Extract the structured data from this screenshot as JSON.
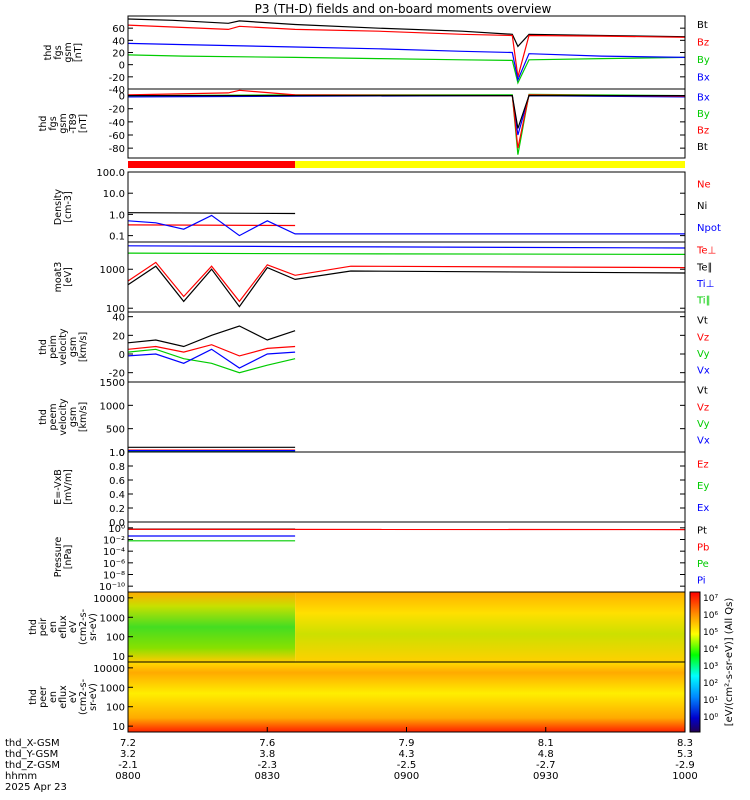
{
  "title": "P3 (TH-D) fields and on-board moments overview",
  "chart_data": [
    {
      "type": "line",
      "ylabel": [
        "thd",
        "fgs",
        "gsm",
        "[nT]"
      ],
      "ticks": [
        "-40",
        "-20",
        "0",
        "20",
        "40",
        "60"
      ],
      "ylim": [
        -40,
        80
      ],
      "series": [
        {
          "name": "Bt",
          "color": "#000000",
          "points": [
            [
              0,
              75
            ],
            [
              0.08,
              73
            ],
            [
              0.18,
              68
            ],
            [
              0.2,
              72
            ],
            [
              0.3,
              66
            ],
            [
              0.45,
              60
            ],
            [
              0.6,
              55
            ],
            [
              0.69,
              50
            ],
            [
              0.7,
              30
            ],
            [
              0.72,
              50
            ],
            [
              0.85,
              48
            ],
            [
              1,
              46
            ]
          ]
        },
        {
          "name": "Bz",
          "color": "#ff0000",
          "points": [
            [
              0,
              65
            ],
            [
              0.08,
              62
            ],
            [
              0.18,
              58
            ],
            [
              0.2,
              63
            ],
            [
              0.3,
              58
            ],
            [
              0.45,
              55
            ],
            [
              0.6,
              50
            ],
            [
              0.69,
              48
            ],
            [
              0.7,
              -20
            ],
            [
              0.72,
              48
            ],
            [
              0.85,
              47
            ],
            [
              1,
              45
            ]
          ]
        },
        {
          "name": "By",
          "color": "#00cc00",
          "points": [
            [
              0,
              16
            ],
            [
              0.1,
              14
            ],
            [
              0.3,
              12
            ],
            [
              0.45,
              10
            ],
            [
              0.6,
              8
            ],
            [
              0.69,
              7
            ],
            [
              0.7,
              -30
            ],
            [
              0.72,
              8
            ],
            [
              0.85,
              10
            ],
            [
              1,
              12
            ]
          ]
        },
        {
          "name": "Bx",
          "color": "#0000ff",
          "points": [
            [
              0,
              35
            ],
            [
              0.1,
              33
            ],
            [
              0.3,
              29
            ],
            [
              0.45,
              26
            ],
            [
              0.6,
              22
            ],
            [
              0.69,
              20
            ],
            [
              0.7,
              -25
            ],
            [
              0.72,
              18
            ],
            [
              0.85,
              14
            ],
            [
              1,
              12
            ]
          ]
        }
      ]
    },
    {
      "type": "line",
      "ylabel": [
        "thd",
        "fgs",
        "gsm",
        "-T89",
        "[nT]"
      ],
      "ticks": [
        "-80",
        "-60",
        "-40",
        "-20",
        "0"
      ],
      "ylim": [
        -95,
        10
      ],
      "series": [
        {
          "name": "Bx",
          "color": "#0000ff",
          "points": [
            [
              0,
              -2
            ],
            [
              0.3,
              -1
            ],
            [
              0.69,
              0
            ],
            [
              0.7,
              -60
            ],
            [
              0.72,
              0
            ],
            [
              1,
              -2
            ]
          ]
        },
        {
          "name": "By",
          "color": "#00cc00",
          "points": [
            [
              0,
              0
            ],
            [
              0.3,
              1
            ],
            [
              0.69,
              1
            ],
            [
              0.7,
              -90
            ],
            [
              0.72,
              2
            ],
            [
              1,
              0
            ]
          ]
        },
        {
          "name": "Bz",
          "color": "#ff0000",
          "points": [
            [
              0,
              1
            ],
            [
              0.18,
              4
            ],
            [
              0.2,
              8
            ],
            [
              0.3,
              1
            ],
            [
              0.69,
              0
            ],
            [
              0.7,
              -80
            ],
            [
              0.72,
              1
            ],
            [
              1,
              -1
            ]
          ]
        },
        {
          "name": "Bt",
          "color": "#000000",
          "points": [
            [
              0,
              0
            ],
            [
              0.3,
              0
            ],
            [
              0.69,
              0
            ],
            [
              0.7,
              -50
            ],
            [
              0.72,
              0
            ],
            [
              1,
              0
            ]
          ]
        }
      ]
    },
    {
      "type": "line",
      "ylabel": [
        "Density",
        "[cm-3]"
      ],
      "ticks": [
        "0.1",
        "1.0",
        "10.0",
        "100.0"
      ],
      "scale": "log",
      "ylim": [
        0.05,
        100
      ],
      "series": [
        {
          "name": "Ne",
          "color": "#ff0000",
          "points": [
            [
              0,
              0.32
            ],
            [
              0.3,
              0.3
            ]
          ]
        },
        {
          "name": "Ni",
          "color": "#000000",
          "points": [
            [
              0,
              1.2
            ],
            [
              0.3,
              1.1
            ]
          ]
        },
        {
          "name": "Npot",
          "color": "#0000ff",
          "points": [
            [
              0,
              0.5
            ],
            [
              0.05,
              0.4
            ],
            [
              0.1,
              0.2
            ],
            [
              0.15,
              0.9
            ],
            [
              0.2,
              0.1
            ],
            [
              0.25,
              0.5
            ],
            [
              0.3,
              0.12
            ],
            [
              1,
              0.12
            ]
          ]
        }
      ]
    },
    {
      "type": "line",
      "ylabel": [
        "moat3",
        "[eV]"
      ],
      "ticks": [
        "100",
        "1000"
      ],
      "scale": "log",
      "ylim": [
        80,
        5000
      ],
      "series": [
        {
          "name": "Te⊥",
          "color": "#ff0000",
          "points": [
            [
              0,
              500
            ],
            [
              0.05,
              1500
            ],
            [
              0.1,
              200
            ],
            [
              0.15,
              1200
            ],
            [
              0.2,
              150
            ],
            [
              0.25,
              1300
            ],
            [
              0.3,
              700
            ],
            [
              0.4,
              1200
            ],
            [
              1,
              1100
            ]
          ]
        },
        {
          "name": "Te∥",
          "color": "#000000",
          "points": [
            [
              0,
              400
            ],
            [
              0.05,
              1200
            ],
            [
              0.1,
              150
            ],
            [
              0.15,
              1000
            ],
            [
              0.2,
              110
            ],
            [
              0.25,
              1100
            ],
            [
              0.3,
              550
            ],
            [
              0.4,
              900
            ],
            [
              1,
              800
            ]
          ]
        },
        {
          "name": "Ti⊥",
          "color": "#0000ff",
          "points": [
            [
              0,
              4000
            ],
            [
              0.3,
              3800
            ],
            [
              1,
              3500
            ]
          ]
        },
        {
          "name": "Ti∥",
          "color": "#00cc00",
          "points": [
            [
              0,
              2600
            ],
            [
              0.3,
              2500
            ],
            [
              1,
              2400
            ]
          ]
        }
      ]
    },
    {
      "type": "line",
      "ylabel": [
        "thd",
        "peim",
        "velocity",
        "gsm",
        "[km/s]"
      ],
      "ticks": [
        "-20",
        "0",
        "20",
        "40"
      ],
      "ylim": [
        -30,
        45
      ],
      "series": [
        {
          "name": "Vt",
          "color": "#000000",
          "points": [
            [
              0,
              12
            ],
            [
              0.05,
              15
            ],
            [
              0.1,
              8
            ],
            [
              0.15,
              20
            ],
            [
              0.2,
              30
            ],
            [
              0.25,
              15
            ],
            [
              0.3,
              25
            ]
          ]
        },
        {
          "name": "Vz",
          "color": "#ff0000",
          "points": [
            [
              0,
              5
            ],
            [
              0.05,
              8
            ],
            [
              0.1,
              2
            ],
            [
              0.15,
              10
            ],
            [
              0.2,
              -2
            ],
            [
              0.25,
              6
            ],
            [
              0.3,
              8
            ]
          ]
        },
        {
          "name": "Vy",
          "color": "#00cc00",
          "points": [
            [
              0,
              2
            ],
            [
              0.05,
              5
            ],
            [
              0.1,
              -5
            ],
            [
              0.15,
              -10
            ],
            [
              0.2,
              -20
            ],
            [
              0.25,
              -12
            ],
            [
              0.3,
              -5
            ]
          ]
        },
        {
          "name": "Vx",
          "color": "#0000ff",
          "points": [
            [
              0,
              -2
            ],
            [
              0.05,
              0
            ],
            [
              0.1,
              -10
            ],
            [
              0.15,
              5
            ],
            [
              0.2,
              -15
            ],
            [
              0.25,
              0
            ],
            [
              0.3,
              2
            ]
          ]
        }
      ]
    },
    {
      "type": "line",
      "ylabel": [
        "thd",
        "peem",
        "velocity",
        "gsm",
        "[km/s]"
      ],
      "ticks": [
        "0",
        "500",
        "1000",
        "1500"
      ],
      "ylim": [
        0,
        1500
      ],
      "series": [
        {
          "name": "Vt",
          "color": "#000000",
          "points": [
            [
              0,
              100
            ],
            [
              0.3,
              100
            ]
          ]
        },
        {
          "name": "Vz",
          "color": "#ff0000",
          "points": [
            [
              0,
              40
            ],
            [
              0.3,
              40
            ]
          ]
        },
        {
          "name": "Vy",
          "color": "#00cc00",
          "points": [
            [
              0,
              20
            ],
            [
              0.3,
              20
            ]
          ]
        },
        {
          "name": "Vx",
          "color": "#0000ff",
          "points": [
            [
              0,
              30
            ],
            [
              0.3,
              30
            ]
          ]
        }
      ]
    },
    {
      "type": "line",
      "ylabel": [
        "E=-VxB",
        "[mV/m]"
      ],
      "ticks": [
        "0.0",
        "0.2",
        "0.4",
        "0.6",
        "0.8",
        "1.0"
      ],
      "ylim": [
        0,
        1
      ],
      "series": [
        {
          "name": "Ez",
          "color": "#ff0000",
          "points": []
        },
        {
          "name": "Ey",
          "color": "#00cc00",
          "points": []
        },
        {
          "name": "Ex",
          "color": "#0000ff",
          "points": []
        }
      ]
    },
    {
      "type": "line",
      "ylabel": [
        "Pressure",
        "[nPa]"
      ],
      "ticks": [
        "10⁻¹⁰",
        "10⁻⁸",
        "10⁻⁶",
        "10⁻⁴",
        "10⁻²",
        "10⁰"
      ],
      "scale": "log",
      "ylim": [
        1e-11,
        10
      ],
      "series": [
        {
          "name": "Pt",
          "color": "#000000",
          "points": [
            [
              0,
              0.6
            ],
            [
              0.3,
              0.6
            ]
          ]
        },
        {
          "name": "Pb",
          "color": "#ff0000",
          "points": [
            [
              0,
              0.55
            ],
            [
              1,
              0.5
            ]
          ]
        },
        {
          "name": "Pe",
          "color": "#00cc00",
          "points": [
            [
              0,
              0.006
            ],
            [
              0.3,
              0.006
            ]
          ]
        },
        {
          "name": "Pi",
          "color": "#0000ff",
          "points": [
            [
              0,
              0.04
            ],
            [
              0.3,
              0.04
            ]
          ]
        }
      ]
    },
    {
      "type": "heatmap",
      "ylabel": [
        "thd",
        "peir",
        "en",
        "eflux",
        "eV",
        "(cm2-s-",
        "sr-eV)"
      ],
      "ticks": [
        "10",
        "100",
        "1000",
        "10000"
      ]
    },
    {
      "type": "heatmap",
      "ylabel": [
        "thd",
        "peer",
        "en",
        "eflux",
        "eV",
        "(cm2-s-",
        "sr-eV)"
      ],
      "ticks": [
        "10",
        "100",
        "1000",
        "10000"
      ]
    }
  ],
  "colorbar": {
    "label": "[eV/(cm²-s-sr-eV)] (All Qs)",
    "ticks": [
      "10⁷",
      "10⁶",
      "10⁵",
      "10⁴",
      "10³",
      "10²",
      "10¹",
      "10⁰"
    ]
  },
  "mode_bar": {
    "segments": [
      {
        "to": 0.3,
        "color": "#ff0000"
      },
      {
        "to": 1.0,
        "color": "#ffff00"
      }
    ]
  },
  "x_axis": {
    "rows": [
      {
        "label": "thd_X-GSM",
        "values": [
          "7.2",
          "7.6",
          "7.9",
          "8.1",
          "8.3"
        ]
      },
      {
        "label": "thd_Y-GSM",
        "values": [
          "3.2",
          "3.8",
          "4.3",
          "4.8",
          "5.3"
        ]
      },
      {
        "label": "thd_Z-GSM",
        "values": [
          "-2.1",
          "-2.3",
          "-2.5",
          "-2.7",
          "-2.9"
        ]
      },
      {
        "label": "hhmm",
        "values": [
          "0800",
          "0830",
          "0900",
          "0930",
          "1000"
        ]
      }
    ],
    "date": "2025 Apr 23"
  }
}
